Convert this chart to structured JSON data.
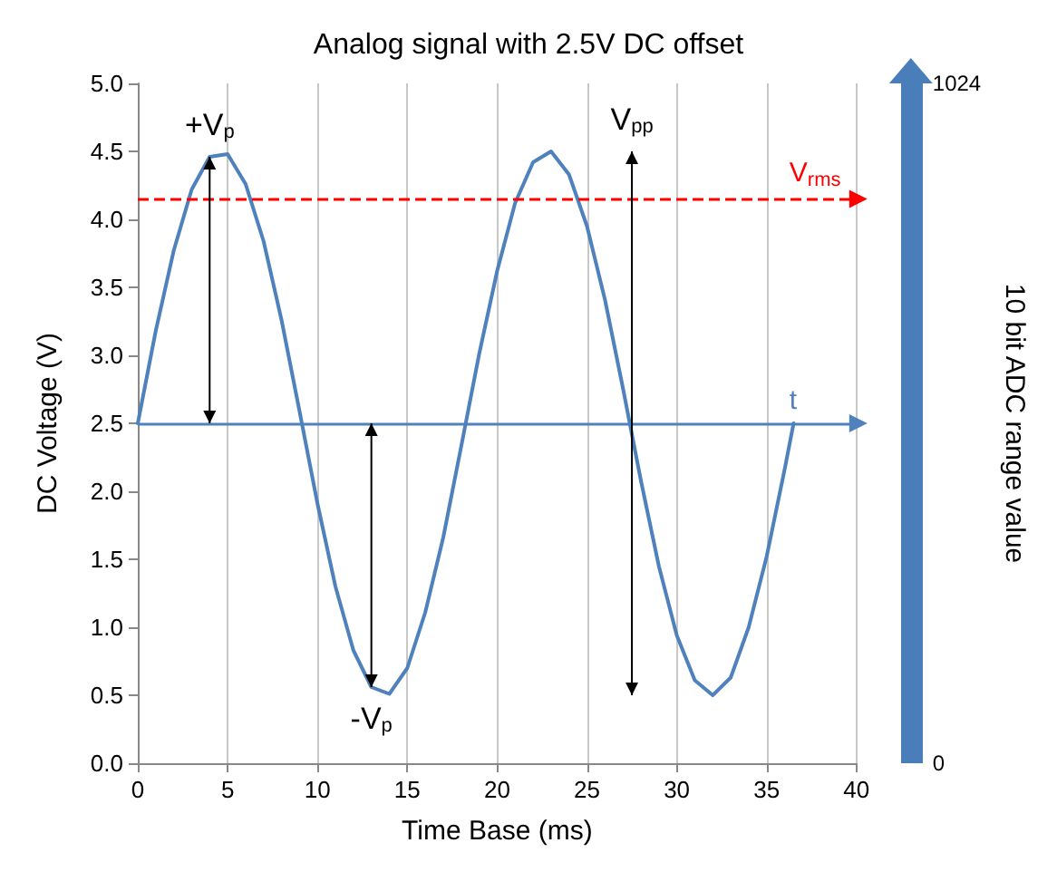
{
  "chart_data": {
    "type": "line",
    "title": "Analog signal with 2.5V DC offset",
    "xlabel": "Time Base (ms)",
    "ylabel": "DC Voltage (V)",
    "y2label": "10 bit ADC range value",
    "x": [
      0,
      1,
      2,
      3,
      4,
      5,
      6,
      7,
      8,
      9,
      10,
      11,
      12,
      13,
      14,
      15,
      16,
      17,
      18,
      19,
      20,
      21,
      22,
      23,
      24,
      25,
      26,
      27,
      28,
      29,
      30,
      31,
      32,
      33,
      34,
      35,
      36,
      36.5
    ],
    "series": [
      {
        "color": "#4f81bd",
        "values": [
          2.5,
          3.18,
          3.77,
          4.22,
          4.46,
          4.48,
          4.26,
          3.84,
          3.26,
          2.59,
          1.91,
          1.3,
          0.83,
          0.56,
          0.51,
          0.7,
          1.11,
          1.66,
          2.33,
          3.01,
          3.62,
          4.12,
          4.42,
          4.5,
          4.33,
          3.95,
          3.41,
          2.76,
          2.08,
          1.45,
          0.94,
          0.61,
          0.5,
          0.63,
          1.0,
          1.52,
          2.16,
          2.5
        ]
      }
    ],
    "xlim": [
      0,
      40
    ],
    "xticks": [
      0,
      5,
      10,
      15,
      20,
      25,
      30,
      35,
      40
    ],
    "ylim": [
      0,
      5
    ],
    "yticks": [
      {
        "value": 0,
        "label": "0.0"
      },
      {
        "value": 0.5,
        "label": "0.5"
      },
      {
        "value": 1,
        "label": "1.0"
      },
      {
        "value": 1.5,
        "label": "1.5"
      },
      {
        "value": 2,
        "label": "2.0"
      },
      {
        "value": 2.5,
        "label": "2.5"
      },
      {
        "value": 3,
        "label": "3.0"
      },
      {
        "value": 3.5,
        "label": "3.5"
      },
      {
        "value": 4,
        "label": "4.0"
      },
      {
        "value": 4.5,
        "label": "4.5"
      },
      {
        "value": 5,
        "label": "5.0"
      }
    ],
    "y2lim": [
      0,
      1024
    ],
    "y2ticks": [
      0,
      1024
    ],
    "ref_lines": [
      {
        "axis": "y",
        "value": 2.5,
        "label": "t",
        "color": "#4f81bd",
        "line_style": "solid"
      },
      {
        "axis": "y",
        "value": 4.15,
        "label": "V$_{rms}$",
        "color": "#ff0000",
        "line_style": "dashed"
      }
    ],
    "annotations": [
      {
        "text": "+V$_{p}$",
        "x": 4,
        "y": 4.46
      },
      {
        "text": "-V$_{p}$",
        "x": 13,
        "y": 0.56
      },
      "V$_{pp}$"
    ],
    "grid": "x",
    "marker": "none",
    "line_style": "solid"
  }
}
